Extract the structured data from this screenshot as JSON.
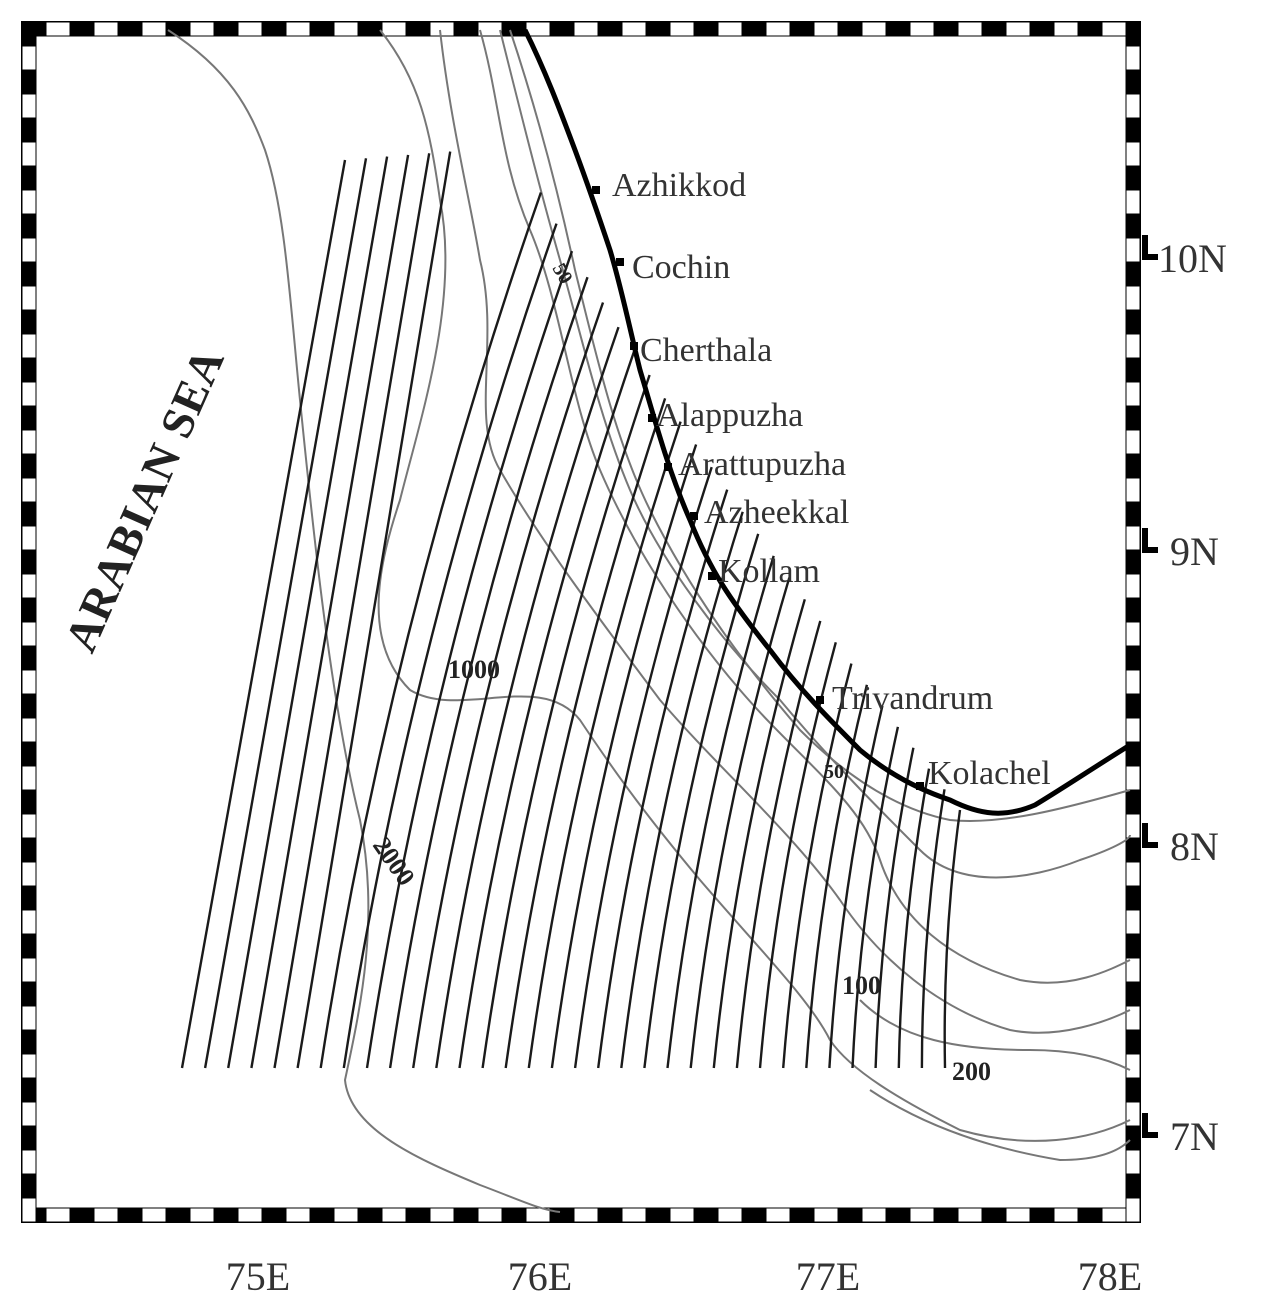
{
  "map": {
    "sea_label": "ARABIAN SEA",
    "longitude_labels": [
      "75E",
      "76E",
      "77E",
      "78E"
    ],
    "latitude_labels": [
      "10N",
      "9N",
      "8N",
      "7N"
    ],
    "places": [
      {
        "name": "Azhikkod"
      },
      {
        "name": "Cochin"
      },
      {
        "name": "Cherthala"
      },
      {
        "name": "Alappuzha"
      },
      {
        "name": "Arattupuzha"
      },
      {
        "name": "Azheekkal"
      },
      {
        "name": "Kollam"
      },
      {
        "name": "Trivandrum"
      },
      {
        "name": "Kolachel"
      }
    ],
    "contour_labels": {
      "c1000": "1000",
      "c2000": "2000",
      "c100": "100",
      "c200": "200",
      "c50a": "50",
      "c50b": "50"
    },
    "colors": {
      "frame": "#000000",
      "coast": "#000000",
      "contour": "#777777",
      "transect": "#1a1a1a"
    }
  }
}
